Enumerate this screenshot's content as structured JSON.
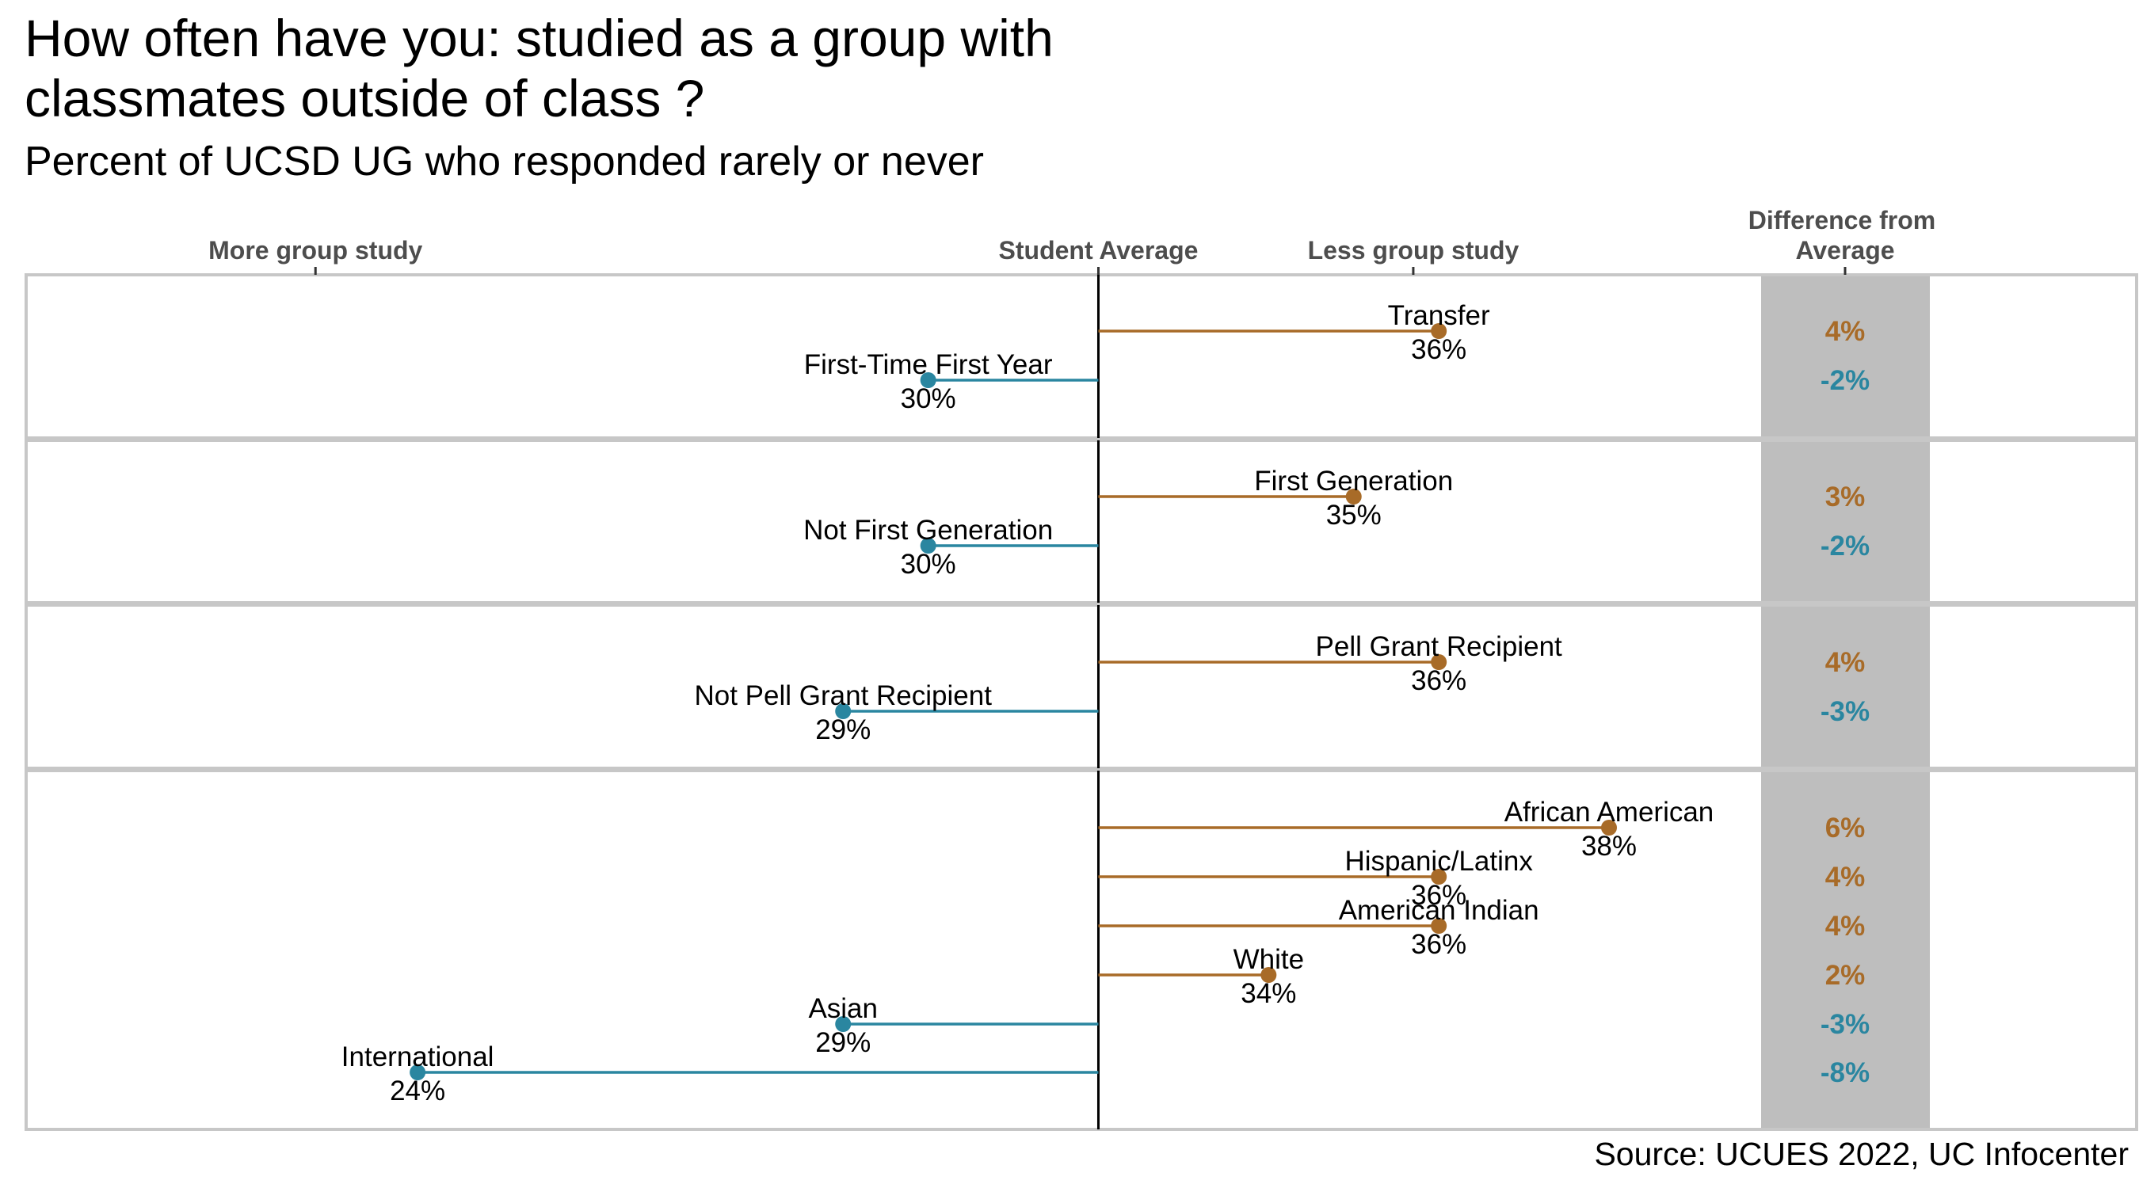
{
  "title": "How often have you: studied as a group with classmates outside of class ?",
  "subtitle": "Percent of UCSD UG who responded rarely or never",
  "source": "Source: UCUES 2022, UC Infocenter",
  "colors": {
    "above": "#A86B28",
    "below": "#2A86A0",
    "panel_border": "#C7C7C7",
    "diff_column": "#BEBEBE"
  },
  "chart_data": {
    "type": "lollipop",
    "average": 32,
    "xlim": [
      19.4,
      44.2
    ],
    "axis_labels": [
      {
        "text": "More group study",
        "x": 22.8
      },
      {
        "text": "Student Average",
        "x": 32
      },
      {
        "text": "Less group study",
        "x": 35.7
      }
    ],
    "diff_header": "Difference from Average",
    "panels": [
      {
        "items": [
          {
            "label": "Transfer",
            "value": 36,
            "value_label": "36%",
            "diff": "4%"
          },
          {
            "label": "First-Time First Year",
            "value": 30,
            "value_label": "30%",
            "diff": "-2%"
          }
        ]
      },
      {
        "items": [
          {
            "label": "First Generation",
            "value": 35,
            "value_label": "35%",
            "diff": "3%"
          },
          {
            "label": "Not First Generation",
            "value": 30,
            "value_label": "30%",
            "diff": "-2%"
          }
        ]
      },
      {
        "items": [
          {
            "label": "Pell Grant Recipient",
            "value": 36,
            "value_label": "36%",
            "diff": "4%"
          },
          {
            "label": "Not Pell Grant Recipient",
            "value": 29,
            "value_label": "29%",
            "diff": "-3%"
          }
        ]
      },
      {
        "items": [
          {
            "label": "African American",
            "value": 38,
            "value_label": "38%",
            "diff": "6%"
          },
          {
            "label": "Hispanic/Latinx",
            "value": 36,
            "value_label": "36%",
            "diff": "4%"
          },
          {
            "label": "American Indian",
            "value": 36,
            "value_label": "36%",
            "diff": "4%"
          },
          {
            "label": "White",
            "value": 34,
            "value_label": "34%",
            "diff": "2%"
          },
          {
            "label": "Asian",
            "value": 29,
            "value_label": "29%",
            "diff": "-3%"
          },
          {
            "label": "International",
            "value": 24,
            "value_label": "24%",
            "diff": "-8%"
          }
        ]
      }
    ]
  }
}
